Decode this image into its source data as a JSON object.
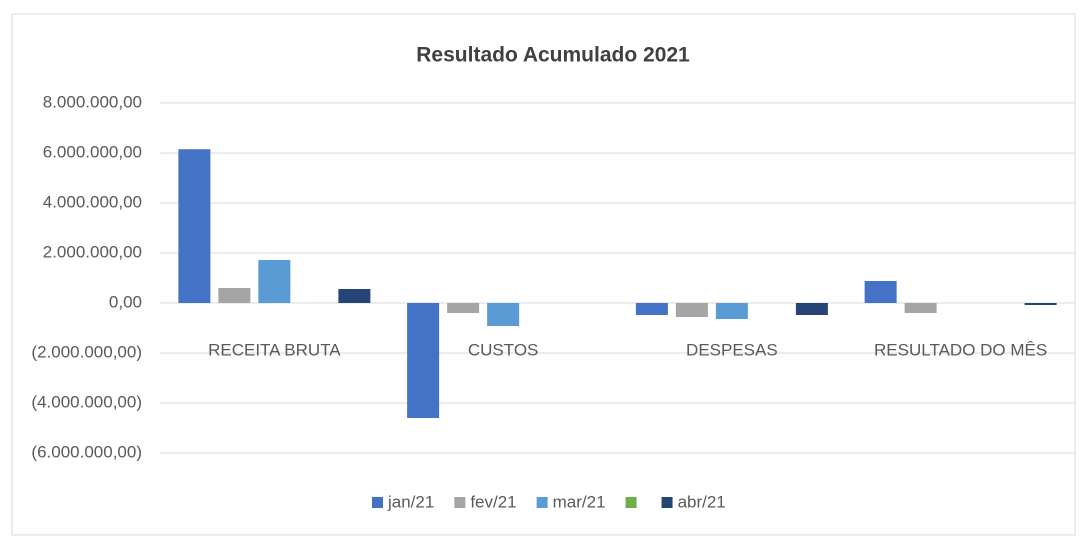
{
  "chart_data": {
    "type": "bar",
    "title": "Resultado Acumulado 2021",
    "categories": [
      "RECEITA BRUTA",
      "CUSTOS",
      "DESPESAS",
      "RESULTADO DO MÊS"
    ],
    "series": [
      {
        "name": "jan/21",
        "color": "#4472c4",
        "values": [
          6150000,
          -4600000,
          -480000,
          880000
        ]
      },
      {
        "name": "fev/21",
        "color": "#a5a5a5",
        "values": [
          600000,
          -400000,
          -560000,
          -400000
        ]
      },
      {
        "name": "mar/21",
        "color": "#5b9bd5",
        "values": [
          1720000,
          -920000,
          -640000,
          0
        ]
      },
      {
        "name": null,
        "color": "#70ad47",
        "values": [
          0,
          0,
          0,
          0
        ]
      },
      {
        "name": "abr/21",
        "color": "#264478",
        "values": [
          560000,
          0,
          -480000,
          -80000
        ]
      }
    ],
    "ylim": [
      -6000000,
      8000000
    ],
    "yticks": [
      {
        "value": -6000000,
        "label": "(6.000.000,00)"
      },
      {
        "value": -4000000,
        "label": "(4.000.000,00)"
      },
      {
        "value": -2000000,
        "label": "(2.000.000,00)"
      },
      {
        "value": 0,
        "label": "0,00"
      },
      {
        "value": 2000000,
        "label": "2.000.000,00"
      },
      {
        "value": 4000000,
        "label": "4.000.000,00"
      },
      {
        "value": 6000000,
        "label": "6.000.000,00"
      },
      {
        "value": 8000000,
        "label": "8.000.000,00"
      }
    ],
    "grid": true,
    "legend": "bottom"
  }
}
